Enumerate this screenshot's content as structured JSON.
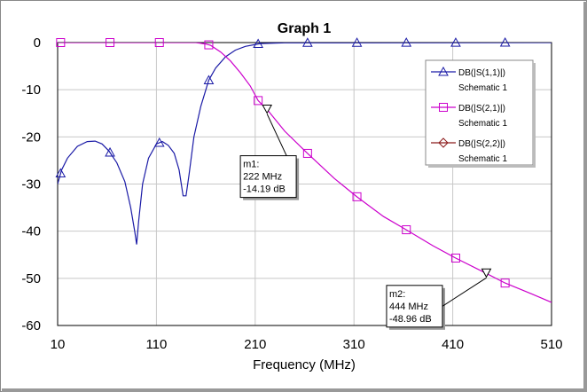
{
  "chart_data": {
    "type": "line",
    "title": "Graph 1",
    "xlabel": "Frequency (MHz)",
    "ylabel": "",
    "xlim": [
      10,
      510
    ],
    "ylim": [
      -60,
      0
    ],
    "x_ticks": [
      10,
      110,
      210,
      310,
      410,
      510
    ],
    "y_ticks": [
      0,
      -10,
      -20,
      -30,
      -40,
      -50,
      -60
    ],
    "grid": true,
    "legend_position": "top-right",
    "series": [
      {
        "name": "DB(|S(1,1)|)",
        "subname": "Schematic 1",
        "color": "#1a1aa6",
        "marker": "triangle-up",
        "points": [
          [
            10,
            -30
          ],
          [
            14,
            -27
          ],
          [
            20,
            -24.5
          ],
          [
            30,
            -22
          ],
          [
            40,
            -21
          ],
          [
            48,
            -20.9
          ],
          [
            55,
            -21.5
          ],
          [
            62,
            -23
          ],
          [
            70,
            -25.5
          ],
          [
            78,
            -29.5
          ],
          [
            84,
            -35
          ],
          [
            88,
            -40
          ],
          [
            90,
            -42.8
          ],
          [
            92,
            -38
          ],
          [
            96,
            -30
          ],
          [
            102,
            -24.5
          ],
          [
            110,
            -21.5
          ],
          [
            116,
            -21
          ],
          [
            122,
            -21.8
          ],
          [
            128,
            -23.5
          ],
          [
            133,
            -27
          ],
          [
            137,
            -32.5
          ],
          [
            140,
            -32.5
          ],
          [
            143,
            -28
          ],
          [
            148,
            -20
          ],
          [
            155,
            -13.5
          ],
          [
            163,
            -8
          ],
          [
            170,
            -5.4
          ],
          [
            180,
            -3
          ],
          [
            190,
            -1.6
          ],
          [
            200,
            -0.8
          ],
          [
            215,
            -0.2
          ],
          [
            240,
            -0.05
          ],
          [
            510,
            0
          ]
        ],
        "marker_x": [
          13,
          63,
          113,
          163,
          213,
          263,
          313,
          363,
          413,
          463
        ]
      },
      {
        "name": "DB(|S(2,1)|)",
        "subname": "Schematic 1",
        "color": "#cc00cc",
        "marker": "square",
        "points": [
          [
            10,
            0
          ],
          [
            150,
            0
          ],
          [
            160,
            -0.3
          ],
          [
            165,
            -0.6
          ],
          [
            175,
            -2
          ],
          [
            185,
            -3.9
          ],
          [
            195,
            -6.4
          ],
          [
            205,
            -9.2
          ],
          [
            213,
            -12.3
          ],
          [
            222,
            -14.19
          ],
          [
            240,
            -18.8
          ],
          [
            263,
            -23.5
          ],
          [
            290,
            -28.8
          ],
          [
            313,
            -32.7
          ],
          [
            340,
            -36.9
          ],
          [
            363,
            -39.7
          ],
          [
            390,
            -43.1
          ],
          [
            413,
            -45.7
          ],
          [
            444,
            -48.96
          ],
          [
            463,
            -51.0
          ],
          [
            490,
            -53.3
          ],
          [
            510,
            -55.1
          ]
        ],
        "marker_x": [
          13,
          63,
          113,
          163,
          213,
          263,
          313,
          363,
          413,
          463
        ]
      },
      {
        "name": "DB(|S(2,2)|)",
        "subname": "Schematic 1",
        "color": "#8b1a1a",
        "marker": "diamond",
        "points": [],
        "marker_x": []
      }
    ],
    "markers": [
      {
        "label": "m1:",
        "freq": "222 MHz",
        "value": "-14.19 dB",
        "x": 222,
        "y": -14.19,
        "box_at": [
          195,
          -24
        ]
      },
      {
        "label": "m2:",
        "freq": "444 MHz",
        "value": "-48.96 dB",
        "x": 444,
        "y": -48.96,
        "box_at": [
          343,
          -51.5
        ]
      }
    ]
  }
}
